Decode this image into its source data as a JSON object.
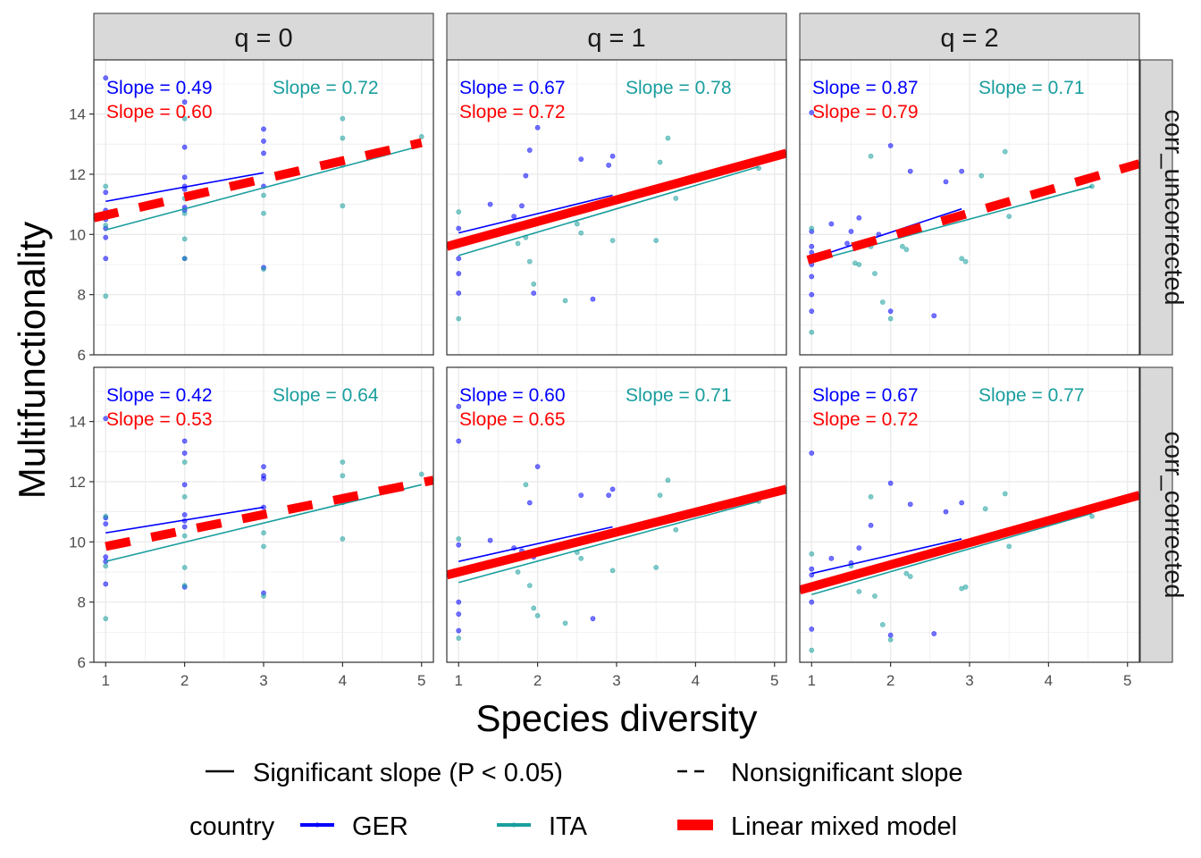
{
  "chart_data": {
    "type": "scatter",
    "facet_columns": [
      "q = 0",
      "q = 1",
      "q = 2"
    ],
    "facet_rows": [
      "corr_uncorrected",
      "corr_corrected"
    ],
    "xlabel": "Species diversity",
    "ylabel": "Multifunctionality",
    "xlim": [
      0.85,
      5.15
    ],
    "ylim": [
      6,
      15.8
    ],
    "x_ticks": [
      1,
      2,
      3,
      4,
      5
    ],
    "y_ticks": [
      6,
      8,
      10,
      12,
      14
    ],
    "grid": true,
    "colors": {
      "GER": "#0000ff",
      "ITA": "#1a9e9e",
      "LMM": "#ff0000",
      "strip": "#d9d9d9",
      "grid": "#ebebeb"
    },
    "legend": {
      "position": "bottom",
      "linetype_items": [
        "Significant slope (P < 0.05)",
        "Nonsignificant slope"
      ],
      "title": "country",
      "items": [
        "GER",
        "ITA",
        "Linear mixed model"
      ]
    },
    "panels": [
      {
        "row": 0,
        "col": 0,
        "slopes": {
          "GER": "Slope =  0.49",
          "ITA": "Slope =  0.72",
          "LMM": "Slope =  0.60"
        },
        "lines": {
          "GER": {
            "x": [
              1,
              3
            ],
            "y": [
              11.1,
              12.05
            ],
            "significant": true
          },
          "ITA": {
            "x": [
              1,
              5
            ],
            "y": [
              10.15,
              12.95
            ],
            "significant": true
          },
          "LMM": {
            "x": [
              0.85,
              5
            ],
            "y": [
              10.55,
              13.05
            ],
            "significant": false
          }
        },
        "points": {
          "GER": [
            [
              1,
              15.2
            ],
            [
              1,
              11.4
            ],
            [
              1,
              10.8
            ],
            [
              1,
              10.5
            ],
            [
              1,
              10.2
            ],
            [
              1,
              9.9
            ],
            [
              1,
              9.2
            ],
            [
              2,
              14.4
            ],
            [
              2,
              12.9
            ],
            [
              2,
              11.9
            ],
            [
              2,
              11.6
            ],
            [
              2,
              11.5
            ],
            [
              2,
              10.9
            ],
            [
              2,
              10.8
            ],
            [
              2,
              9.2
            ],
            [
              3,
              13.5
            ],
            [
              3,
              13.1
            ],
            [
              3,
              12.7
            ],
            [
              3,
              11.6
            ],
            [
              3,
              8.9
            ]
          ],
          "ITA": [
            [
              1,
              11.6
            ],
            [
              1,
              10.3
            ],
            [
              1,
              7.95
            ],
            [
              2,
              13.85
            ],
            [
              2,
              11.2
            ],
            [
              2,
              10.7
            ],
            [
              2,
              9.85
            ],
            [
              2,
              9.2
            ],
            [
              3,
              11.3
            ],
            [
              3,
              10.7
            ],
            [
              3,
              8.85
            ],
            [
              4,
              13.85
            ],
            [
              4,
              13.2
            ],
            [
              4,
              12.3
            ],
            [
              4,
              10.95
            ],
            [
              5,
              13.25
            ]
          ]
        }
      },
      {
        "row": 0,
        "col": 1,
        "slopes": {
          "GER": "Slope =  0.67",
          "ITA": "Slope =  0.78",
          "LMM": "Slope =  0.72"
        },
        "lines": {
          "GER": {
            "x": [
              1,
              2.95
            ],
            "y": [
              10.05,
              11.3
            ],
            "significant": true
          },
          "ITA": {
            "x": [
              1,
              4.8
            ],
            "y": [
              9.3,
              12.25
            ],
            "significant": true
          },
          "LMM": {
            "x": [
              0.85,
              5.15
            ],
            "y": [
              9.6,
              12.7
            ],
            "significant": true
          }
        },
        "points": {
          "GER": [
            [
              1,
              10.2
            ],
            [
              1,
              9.2
            ],
            [
              1,
              8.7
            ],
            [
              1,
              8.05
            ],
            [
              1.4,
              11.0
            ],
            [
              1.7,
              10.6
            ],
            [
              1.8,
              10.95
            ],
            [
              1.85,
              11.95
            ],
            [
              1.95,
              8.05
            ],
            [
              2,
              13.55
            ],
            [
              2.55,
              12.5
            ],
            [
              2.7,
              7.85
            ],
            [
              2.9,
              12.3
            ],
            [
              2.95,
              12.6
            ],
            [
              1.9,
              12.8
            ]
          ],
          "ITA": [
            [
              1,
              10.75
            ],
            [
              1,
              7.2
            ],
            [
              1.75,
              9.7
            ],
            [
              1.85,
              9.9
            ],
            [
              1.9,
              9.1
            ],
            [
              1.95,
              8.35
            ],
            [
              2.35,
              7.8
            ],
            [
              2.5,
              10.35
            ],
            [
              2.55,
              10.05
            ],
            [
              2.95,
              9.8
            ],
            [
              3.5,
              9.8
            ],
            [
              3.55,
              12.4
            ],
            [
              3.65,
              13.2
            ],
            [
              3.75,
              11.2
            ],
            [
              4.8,
              12.2
            ]
          ]
        }
      },
      {
        "row": 0,
        "col": 2,
        "slopes": {
          "GER": "Slope =  0.87",
          "ITA": "Slope =  0.71",
          "LMM": "Slope =  0.79"
        },
        "lines": {
          "GER": {
            "x": [
              1,
              2.9
            ],
            "y": [
              9.2,
              10.85
            ],
            "significant": true
          },
          "ITA": {
            "x": [
              1,
              4.55
            ],
            "y": [
              9.1,
              11.6
            ],
            "significant": true
          },
          "LMM": {
            "x": [
              0.95,
              5.15
            ],
            "y": [
              9.15,
              12.35
            ],
            "significant": false
          }
        },
        "points": {
          "GER": [
            [
              1,
              14.05
            ],
            [
              1,
              10.1
            ],
            [
              1,
              9.6
            ],
            [
              1,
              9.4
            ],
            [
              1,
              9.0
            ],
            [
              1,
              8.6
            ],
            [
              1,
              8.0
            ],
            [
              1,
              7.45
            ],
            [
              1.25,
              10.35
            ],
            [
              1.45,
              9.7
            ],
            [
              1.5,
              10.1
            ],
            [
              1.6,
              10.55
            ],
            [
              2,
              12.95
            ],
            [
              2,
              7.45
            ],
            [
              2.25,
              12.1
            ],
            [
              2.55,
              7.3
            ],
            [
              2.7,
              11.75
            ],
            [
              2.9,
              12.1
            ],
            [
              1.85,
              10.0
            ]
          ],
          "ITA": [
            [
              1,
              10.2
            ],
            [
              1,
              6.75
            ],
            [
              1.6,
              9.0
            ],
            [
              1.75,
              9.6
            ],
            [
              1.8,
              8.7
            ],
            [
              1.75,
              12.6
            ],
            [
              1.9,
              7.75
            ],
            [
              2,
              7.2
            ],
            [
              2.2,
              9.5
            ],
            [
              2.15,
              9.6
            ],
            [
              2.9,
              9.2
            ],
            [
              2.95,
              9.1
            ],
            [
              3.15,
              11.95
            ],
            [
              3.45,
              12.75
            ],
            [
              3.5,
              10.6
            ],
            [
              4.55,
              11.6
            ],
            [
              1.55,
              9.05
            ]
          ]
        }
      },
      {
        "row": 1,
        "col": 0,
        "slopes": {
          "GER": "Slope =  0.42",
          "ITA": "Slope =  0.64",
          "LMM": "Slope =  0.53"
        },
        "lines": {
          "GER": {
            "x": [
              1,
              3
            ],
            "y": [
              10.3,
              11.15
            ],
            "significant": true
          },
          "ITA": {
            "x": [
              1,
              5
            ],
            "y": [
              9.35,
              11.9
            ],
            "significant": true
          },
          "LMM": {
            "x": [
              1,
              5.15
            ],
            "y": [
              9.85,
              12.05
            ],
            "significant": false
          }
        },
        "points": {
          "GER": [
            [
              1,
              14.1
            ],
            [
              1,
              10.8
            ],
            [
              1,
              10.6
            ],
            [
              1,
              9.5
            ],
            [
              1,
              9.35
            ],
            [
              1,
              8.6
            ],
            [
              2,
              13.35
            ],
            [
              2,
              12.95
            ],
            [
              2,
              11.9
            ],
            [
              2,
              10.9
            ],
            [
              2,
              10.7
            ],
            [
              2,
              10.5
            ],
            [
              2,
              8.5
            ],
            [
              3,
              12.5
            ],
            [
              3,
              12.2
            ],
            [
              3,
              12.1
            ],
            [
              3,
              11.15
            ],
            [
              3,
              8.3
            ]
          ],
          "ITA": [
            [
              1,
              10.85
            ],
            [
              1,
              9.2
            ],
            [
              1,
              7.45
            ],
            [
              2,
              12.65
            ],
            [
              2,
              11.5
            ],
            [
              2,
              10.2
            ],
            [
              2,
              9.15
            ],
            [
              2,
              8.55
            ],
            [
              3,
              10.95
            ],
            [
              3,
              10.3
            ],
            [
              3,
              9.85
            ],
            [
              3,
              8.2
            ],
            [
              4,
              12.65
            ],
            [
              4,
              12.2
            ],
            [
              4,
              11.3
            ],
            [
              4,
              10.1
            ],
            [
              5,
              12.25
            ]
          ]
        }
      },
      {
        "row": 1,
        "col": 1,
        "slopes": {
          "GER": "Slope =  0.60",
          "ITA": "Slope =  0.71",
          "LMM": "Slope =  0.65"
        },
        "lines": {
          "GER": {
            "x": [
              1,
              2.95
            ],
            "y": [
              9.35,
              10.5
            ],
            "significant": true
          },
          "ITA": {
            "x": [
              1,
              4.8
            ],
            "y": [
              8.65,
              11.35
            ],
            "significant": true
          },
          "LMM": {
            "x": [
              0.85,
              5.15
            ],
            "y": [
              8.9,
              11.75
            ],
            "significant": true
          }
        },
        "points": {
          "GER": [
            [
              1,
              14.5
            ],
            [
              1,
              13.35
            ],
            [
              1,
              9.9
            ],
            [
              1,
              8.0
            ],
            [
              1,
              7.6
            ],
            [
              1,
              7.05
            ],
            [
              1.4,
              10.05
            ],
            [
              1.7,
              9.8
            ],
            [
              1.8,
              9.7
            ],
            [
              1.95,
              9.5
            ],
            [
              2,
              12.5
            ],
            [
              2.55,
              11.55
            ],
            [
              2.7,
              7.45
            ],
            [
              2.9,
              11.55
            ],
            [
              2.95,
              11.75
            ],
            [
              1.9,
              11.3
            ]
          ],
          "ITA": [
            [
              1,
              10.1
            ],
            [
              1,
              6.8
            ],
            [
              1.75,
              9.0
            ],
            [
              1.85,
              11.9
            ],
            [
              1.9,
              8.55
            ],
            [
              1.95,
              7.8
            ],
            [
              2,
              7.55
            ],
            [
              2.35,
              7.3
            ],
            [
              2.5,
              9.65
            ],
            [
              2.55,
              9.45
            ],
            [
              2.95,
              9.05
            ],
            [
              3.5,
              9.15
            ],
            [
              3.55,
              11.55
            ],
            [
              3.65,
              12.05
            ],
            [
              3.75,
              10.4
            ],
            [
              4.8,
              11.35
            ]
          ]
        }
      },
      {
        "row": 1,
        "col": 2,
        "slopes": {
          "GER": "Slope =  0.67",
          "ITA": "Slope =  0.77",
          "LMM": "Slope =  0.72"
        },
        "lines": {
          "GER": {
            "x": [
              1,
              2.9
            ],
            "y": [
              8.95,
              10.1
            ],
            "significant": true
          },
          "ITA": {
            "x": [
              1,
              4.55
            ],
            "y": [
              8.25,
              10.95
            ],
            "significant": true
          },
          "LMM": {
            "x": [
              0.85,
              5.15
            ],
            "y": [
              8.4,
              11.55
            ],
            "significant": true
          }
        },
        "points": {
          "GER": [
            [
              1,
              12.95
            ],
            [
              1,
              9.1
            ],
            [
              1,
              8.9
            ],
            [
              1,
              8.5
            ],
            [
              1,
              8.0
            ],
            [
              1,
              7.1
            ],
            [
              1.25,
              9.45
            ],
            [
              1.5,
              9.3
            ],
            [
              1.6,
              9.8
            ],
            [
              1.75,
              10.55
            ],
            [
              2,
              11.95
            ],
            [
              2.0,
              6.9
            ],
            [
              2.25,
              11.25
            ],
            [
              2.55,
              6.95
            ],
            [
              2.7,
              11.0
            ],
            [
              2.9,
              11.3
            ]
          ],
          "ITA": [
            [
              1,
              9.6
            ],
            [
              1,
              6.4
            ],
            [
              1.5,
              9.2
            ],
            [
              1.6,
              8.35
            ],
            [
              1.75,
              11.5
            ],
            [
              1.8,
              8.2
            ],
            [
              1.9,
              7.25
            ],
            [
              2,
              6.75
            ],
            [
              2.2,
              8.95
            ],
            [
              2.25,
              8.85
            ],
            [
              2.9,
              8.45
            ],
            [
              2.95,
              8.5
            ],
            [
              3.2,
              11.1
            ],
            [
              3.45,
              11.6
            ],
            [
              3.5,
              9.85
            ],
            [
              4.55,
              10.85
            ]
          ]
        }
      }
    ]
  }
}
